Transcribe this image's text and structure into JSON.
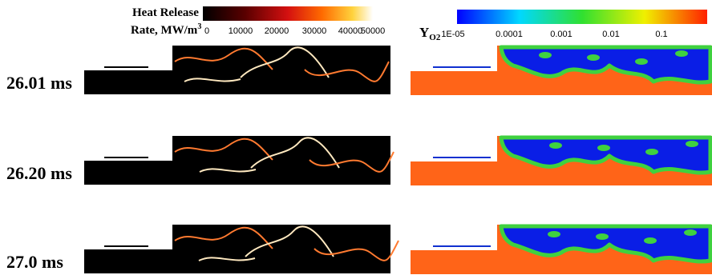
{
  "heat_release_colorbar": {
    "title_line1": "Heat Release",
    "title_line2": "Rate, MW/m",
    "title_superscript": "3",
    "ticks": [
      "0",
      "10000",
      "20000",
      "30000",
      "40000",
      "50000"
    ]
  },
  "oxygen_colorbar": {
    "symbol": "Y",
    "subscript": "O2",
    "ticks": [
      "1E-05",
      "0.0001",
      "0.001",
      "0.01",
      "0.1"
    ]
  },
  "snapshots": [
    "26.01 ms",
    "26.20 ms",
    "27.0 ms"
  ]
}
